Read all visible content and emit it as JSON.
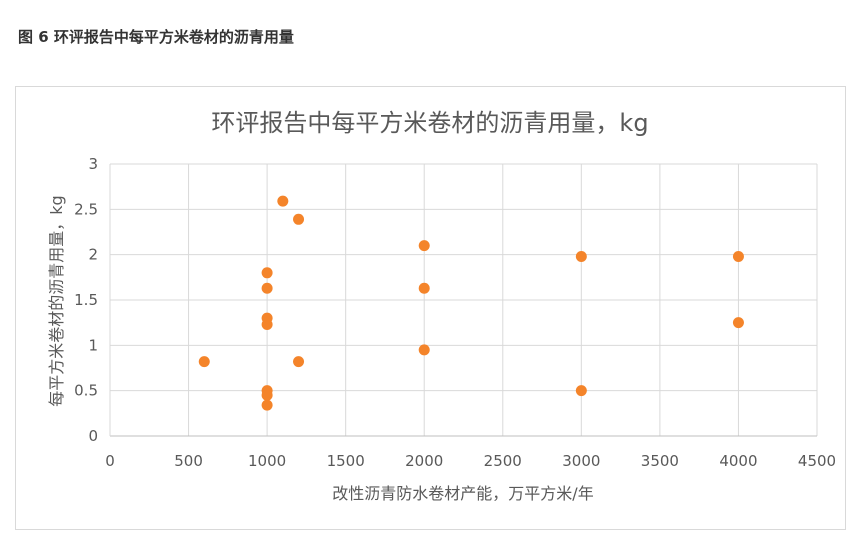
{
  "caption": "图 6 环评报告中每平方米卷材的沥青用量",
  "chart_data": {
    "type": "scatter",
    "title": "环评报告中每平方米卷材的沥青用量，kg",
    "xlabel": "改性沥青防水卷材产能，万平方米/年",
    "ylabel": "每平方米卷材的沥青用量，kg",
    "xlim": [
      0,
      4500
    ],
    "ylim": [
      0,
      3
    ],
    "xticks": [
      0,
      500,
      1000,
      1500,
      2000,
      2500,
      3000,
      3500,
      4000,
      4500
    ],
    "yticks": [
      0,
      0.5,
      1,
      1.5,
      2,
      2.5,
      3
    ],
    "xtick_labels": [
      "0",
      "500",
      "1000",
      "1500",
      "2000",
      "2500",
      "3000",
      "3500",
      "4000",
      "4500"
    ],
    "ytick_labels": [
      "0",
      "0.5",
      "1",
      "1.5",
      "2",
      "2.5",
      "3"
    ],
    "grid": true,
    "marker_color": "#F4842A",
    "points": [
      {
        "x": 600,
        "y": 0.82
      },
      {
        "x": 1000,
        "y": 1.8
      },
      {
        "x": 1000,
        "y": 1.63
      },
      {
        "x": 1000,
        "y": 1.3
      },
      {
        "x": 1000,
        "y": 1.23
      },
      {
        "x": 1000,
        "y": 0.5
      },
      {
        "x": 1000,
        "y": 0.45
      },
      {
        "x": 1000,
        "y": 0.34
      },
      {
        "x": 1100,
        "y": 2.59
      },
      {
        "x": 1200,
        "y": 2.39
      },
      {
        "x": 1200,
        "y": 0.82
      },
      {
        "x": 2000,
        "y": 2.1
      },
      {
        "x": 2000,
        "y": 1.63
      },
      {
        "x": 2000,
        "y": 0.95
      },
      {
        "x": 3000,
        "y": 1.98
      },
      {
        "x": 3000,
        "y": 0.5
      },
      {
        "x": 4000,
        "y": 1.98
      },
      {
        "x": 4000,
        "y": 1.25
      }
    ]
  }
}
